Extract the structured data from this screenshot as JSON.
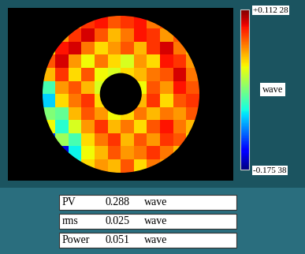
{
  "chart_data": {
    "type": "heatmap",
    "tick_labels": false,
    "cells": [
      [
        null,
        null,
        0.05,
        0.07,
        0.08,
        0.06,
        0.07,
        0.08,
        0.05,
        0.06,
        null,
        null
      ],
      [
        null,
        0.04,
        0.07,
        0.09,
        0.06,
        0.03,
        0.05,
        0.08,
        0.07,
        0.04,
        0.06,
        null
      ],
      [
        0.02,
        0.08,
        0.09,
        0.05,
        0.02,
        0.04,
        0.06,
        0.03,
        0.07,
        0.09,
        0.05,
        0.03
      ],
      [
        0.06,
        0.09,
        0.04,
        0.01,
        0.05,
        0.02,
        0.0,
        0.04,
        0.02,
        0.08,
        0.07,
        0.04
      ],
      [
        0.03,
        0.07,
        0.02,
        0.06,
        0.01,
        0.0,
        0.02,
        0.03,
        0.05,
        0.06,
        0.09,
        0.05
      ],
      [
        -0.05,
        0.04,
        0.06,
        0.03,
        0.0,
        null,
        null,
        0.01,
        0.06,
        0.04,
        0.08,
        0.06
      ],
      [
        -0.08,
        0.02,
        0.05,
        0.07,
        0.02,
        null,
        null,
        0.03,
        0.07,
        0.02,
        0.06,
        0.07
      ],
      [
        -0.03,
        -0.04,
        0.03,
        0.06,
        0.04,
        0.01,
        0.02,
        0.05,
        0.03,
        0.05,
        0.04,
        0.06
      ],
      [
        0.01,
        -0.06,
        0.0,
        0.04,
        0.07,
        0.03,
        0.05,
        0.02,
        0.06,
        0.08,
        0.05,
        0.03
      ],
      [
        -0.12,
        -0.02,
        -0.05,
        0.02,
        0.05,
        0.07,
        0.03,
        0.06,
        0.04,
        0.07,
        0.06,
        0.02
      ],
      [
        null,
        -0.15,
        -0.07,
        0.01,
        0.03,
        0.06,
        0.04,
        0.05,
        0.07,
        0.05,
        0.03,
        null
      ],
      [
        null,
        null,
        -0.06,
        0.02,
        0.04,
        0.03,
        0.06,
        0.02,
        0.05,
        0.04,
        null,
        null
      ]
    ],
    "colorbar": {
      "label": "wave",
      "range": [
        -0.17538,
        0.11228
      ],
      "ticks": [
        {
          "value": 0.11228,
          "label": "+0.112 28"
        },
        {
          "value": -0.17538,
          "label": "-0.175 38"
        }
      ]
    },
    "stats": [
      {
        "name": "PV",
        "value": 0.288,
        "unit": "wave"
      },
      {
        "name": "rms",
        "value": 0.025,
        "unit": "wave"
      },
      {
        "name": "Power",
        "value": 0.051,
        "unit": "wave"
      }
    ]
  }
}
